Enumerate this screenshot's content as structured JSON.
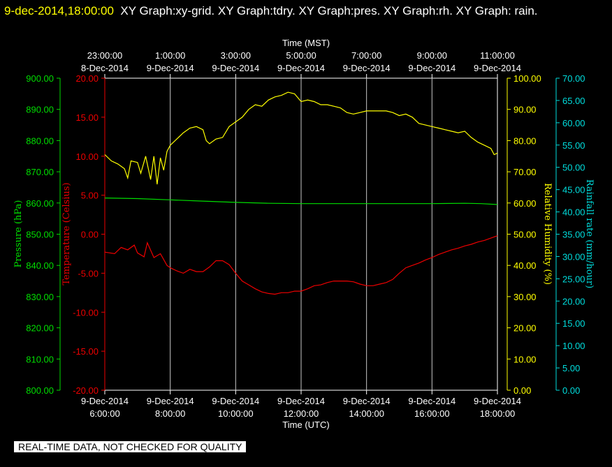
{
  "title": {
    "timestamp": "9-dec-2014,18:00:00",
    "rest": "XY Graph:xy-grid.  XY Graph:tdry.  XY Graph:pres.  XY Graph:rh.  XY Graph: rain."
  },
  "disclaimer": "REAL-TIME DATA, NOT CHECKED FOR QUALITY",
  "colors": {
    "pressure": "#00dd00",
    "temperature": "#ee0000",
    "humidity": "#ffff00",
    "rain": "#00dddd",
    "grid": "#c8c8c8",
    "frame": "#ffffff"
  },
  "chart_data": {
    "type": "line",
    "top_axis": {
      "label": "Time (MST)",
      "ticks": [
        [
          "23:00:00",
          "8-Dec-2014"
        ],
        [
          "1:00:00",
          "9-Dec-2014"
        ],
        [
          "3:00:00",
          "9-Dec-2014"
        ],
        [
          "5:00:00",
          "9-Dec-2014"
        ],
        [
          "7:00:00",
          "9-Dec-2014"
        ],
        [
          "9:00:00",
          "9-Dec-2014"
        ],
        [
          "11:00:00",
          "9-Dec-2014"
        ]
      ]
    },
    "bottom_axis": {
      "label": "Time (UTC)",
      "ticks": [
        [
          "9-Dec-2014",
          "6:00:00"
        ],
        [
          "9-Dec-2014",
          "8:00:00"
        ],
        [
          "9-Dec-2014",
          "10:00:00"
        ],
        [
          "9-Dec-2014",
          "12:00:00"
        ],
        [
          "9-Dec-2014",
          "14:00:00"
        ],
        [
          "9-Dec-2014",
          "16:00:00"
        ],
        [
          "9-Dec-2014",
          "18:00:00"
        ]
      ]
    },
    "x_hours_utc_range": [
      6,
      18
    ],
    "x_grid_hours": [
      8,
      10,
      12,
      14,
      16
    ],
    "axes": {
      "pressure": {
        "label": "Pressure (hPa)",
        "range": [
          800,
          900
        ],
        "ticks": [
          "800.00",
          "810.00",
          "820.00",
          "830.00",
          "840.00",
          "850.00",
          "860.00",
          "870.00",
          "880.00",
          "890.00",
          "900.00"
        ]
      },
      "temperature": {
        "label": "Temperature (Celsius)",
        "range": [
          -20,
          20
        ],
        "ticks": [
          "-20.00",
          "-15.00",
          "-10.00",
          "-5.00",
          "0.00",
          "5.00",
          "10.00",
          "15.00",
          "20.00"
        ]
      },
      "humidity": {
        "label": "Relative Humidity (%)",
        "range": [
          0,
          100
        ],
        "ticks": [
          "0.00",
          "10.00",
          "20.00",
          "30.00",
          "40.00",
          "50.00",
          "60.00",
          "70.00",
          "80.00",
          "90.00",
          "100.00"
        ]
      },
      "rain": {
        "label": "Rainfall rate (mm/hour)",
        "range": [
          0,
          70
        ],
        "ticks": [
          "0.00",
          "5.00",
          "10.00",
          "15.00",
          "20.00",
          "25.00",
          "30.00",
          "35.00",
          "40.00",
          "45.00",
          "50.00",
          "55.00",
          "60.00",
          "65.00",
          "70.00"
        ]
      }
    },
    "series": [
      {
        "name": "rh",
        "axis": "humidity",
        "x": [
          6.0,
          6.2,
          6.4,
          6.6,
          6.7,
          6.8,
          7.0,
          7.1,
          7.25,
          7.4,
          7.5,
          7.6,
          7.7,
          7.8,
          7.9,
          8.0,
          8.2,
          8.4,
          8.6,
          8.8,
          9.0,
          9.1,
          9.2,
          9.4,
          9.6,
          9.8,
          10.0,
          10.2,
          10.4,
          10.6,
          10.8,
          11.0,
          11.2,
          11.4,
          11.6,
          11.8,
          12.0,
          12.2,
          12.4,
          12.6,
          12.8,
          13.0,
          13.2,
          13.4,
          13.6,
          13.8,
          14.0,
          14.2,
          14.4,
          14.6,
          14.8,
          15.0,
          15.2,
          15.4,
          15.6,
          15.8,
          16.0,
          16.2,
          16.4,
          16.6,
          16.8,
          17.0,
          17.2,
          17.4,
          17.6,
          17.8,
          17.9,
          18.0
        ],
        "y": [
          75.5,
          73.5,
          72.5,
          71,
          68,
          73.5,
          73,
          69.5,
          75,
          67.5,
          75,
          66,
          74.5,
          70.5,
          76.5,
          78.5,
          80.5,
          82.5,
          84,
          84.5,
          83.5,
          80,
          79,
          80.5,
          81,
          84.5,
          86,
          87.5,
          90,
          91.5,
          91,
          93,
          94,
          94.5,
          95.5,
          95,
          92.5,
          93,
          92.5,
          91.5,
          91.5,
          91,
          90.5,
          89,
          88.5,
          89,
          89.5,
          89.5,
          89.5,
          89.5,
          89,
          88,
          88.5,
          87.5,
          85.5,
          85,
          84.5,
          84,
          83.5,
          83,
          82.5,
          83,
          81,
          79.5,
          78.5,
          77.5,
          75.5,
          76
        ]
      },
      {
        "name": "pres",
        "axis": "pressure",
        "x": [
          6.0,
          7.0,
          8.0,
          9.0,
          10.0,
          11.0,
          12.0,
          13.0,
          14.0,
          15.0,
          16.0,
          17.0,
          17.5,
          18.0
        ],
        "y": [
          861.6,
          861.4,
          861.0,
          860.6,
          860.2,
          859.9,
          859.8,
          859.8,
          859.8,
          859.8,
          859.8,
          859.9,
          859.8,
          859.5
        ]
      },
      {
        "name": "tdry",
        "axis": "temperature",
        "x": [
          6.0,
          6.3,
          6.5,
          6.7,
          6.9,
          7.0,
          7.2,
          7.3,
          7.5,
          7.7,
          7.9,
          8.0,
          8.2,
          8.4,
          8.6,
          8.8,
          9.0,
          9.2,
          9.4,
          9.6,
          9.8,
          10.0,
          10.2,
          10.4,
          10.6,
          10.8,
          11.0,
          11.2,
          11.4,
          11.6,
          11.8,
          12.0,
          12.2,
          12.4,
          12.6,
          12.8,
          13.0,
          13.2,
          13.4,
          13.6,
          13.8,
          14.0,
          14.2,
          14.4,
          14.6,
          14.8,
          15.0,
          15.2,
          15.4,
          15.6,
          15.8,
          16.0,
          16.2,
          16.4,
          16.6,
          16.8,
          17.0,
          17.2,
          17.4,
          17.6,
          17.8,
          18.0
        ],
        "y": [
          -2.3,
          -2.5,
          -1.7,
          -2.0,
          -1.4,
          -2.4,
          -2.9,
          -1.1,
          -3.0,
          -2.5,
          -4.0,
          -4.3,
          -4.7,
          -5.0,
          -4.5,
          -4.8,
          -4.8,
          -4.2,
          -3.4,
          -3.4,
          -3.9,
          -5.0,
          -6.0,
          -6.5,
          -7.0,
          -7.4,
          -7.6,
          -7.7,
          -7.5,
          -7.5,
          -7.3,
          -7.3,
          -7.0,
          -6.6,
          -6.5,
          -6.2,
          -6.0,
          -6.0,
          -6.0,
          -6.1,
          -6.4,
          -6.6,
          -6.6,
          -6.4,
          -6.2,
          -5.8,
          -5.0,
          -4.3,
          -4.0,
          -3.7,
          -3.3,
          -3.0,
          -2.6,
          -2.3,
          -2.0,
          -1.8,
          -1.5,
          -1.3,
          -1.0,
          -0.8,
          -0.5,
          -0.2
        ]
      }
    ]
  }
}
